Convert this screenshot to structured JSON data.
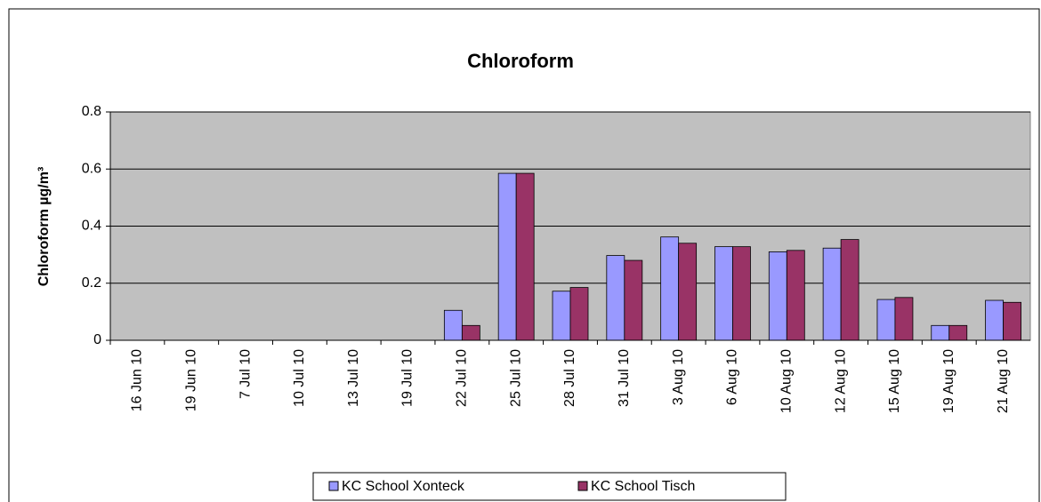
{
  "chart_data": {
    "type": "bar",
    "title": "Chloroform",
    "y_label": "Chloroform µg/m³",
    "categories": [
      "16 Jun 10",
      "19 Jun 10",
      "7 Jul 10",
      "10 Jul 10",
      "13 Jul 10",
      "19 Jul 10",
      "22 Jul 10",
      "25 Jul 10",
      "28 Jul 10",
      "31 Jul 10",
      "3 Aug 10",
      "6 Aug 10",
      "10 Aug 10",
      "12 Aug 10",
      "15 Aug 10",
      "19 Aug 10",
      "21 Aug 10"
    ],
    "series": [
      {
        "name": "KC School Xonteck",
        "color": "#9999ff",
        "values": [
          null,
          null,
          null,
          null,
          null,
          null,
          0.105,
          0.585,
          0.172,
          0.297,
          0.362,
          0.328,
          0.31,
          0.323,
          0.143,
          0.052,
          0.14
        ]
      },
      {
        "name": "KC School Tisch",
        "color": "#993366",
        "values": [
          null,
          null,
          null,
          null,
          null,
          null,
          0.052,
          0.585,
          0.185,
          0.28,
          0.34,
          0.328,
          0.315,
          0.353,
          0.15,
          0.052,
          0.133
        ]
      }
    ],
    "ylim": [
      0,
      0.8
    ],
    "yticks": [
      0,
      0.2,
      0.4,
      0.6,
      0.8
    ],
    "grid": true,
    "legend": "bottom",
    "plot_background": "#c0c0c0"
  }
}
